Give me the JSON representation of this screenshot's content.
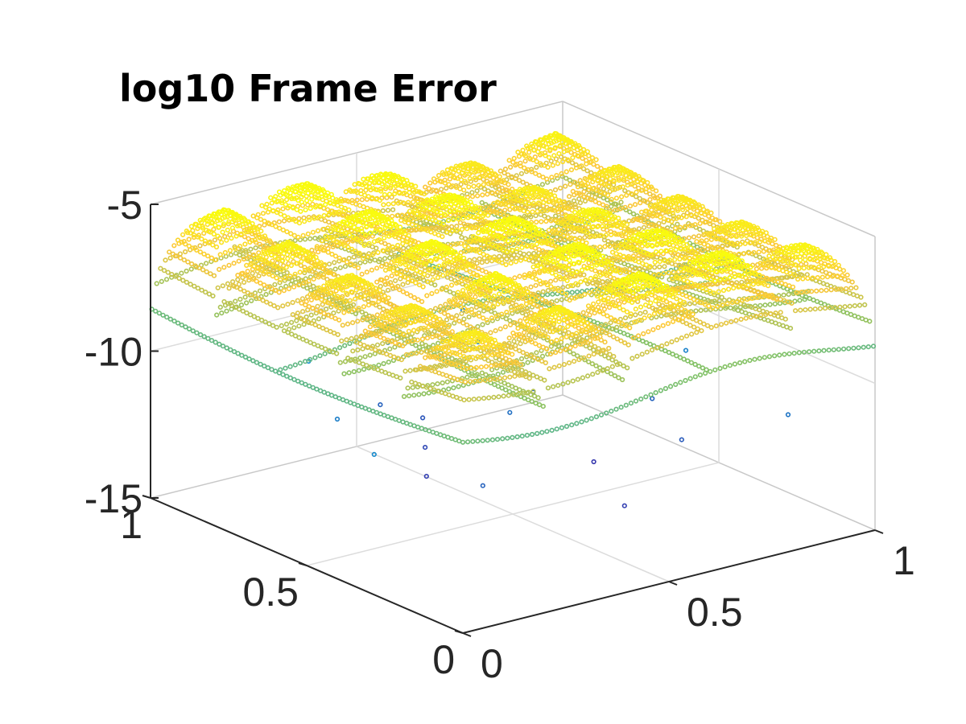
{
  "chart_data": {
    "type": "scatter",
    "view": "3d",
    "title": "log10 Frame Error",
    "xlabel": "",
    "ylabel": "",
    "zlabel": "",
    "xlim": [
      0,
      1
    ],
    "ylim": [
      0,
      1
    ],
    "zlim": [
      -15,
      -5
    ],
    "x_ticks": [
      "0",
      "0.5",
      "1"
    ],
    "y_ticks": [
      "0",
      "0.5",
      "1"
    ],
    "z_ticks": [
      "-5",
      "-10",
      "-15"
    ],
    "grid": true,
    "colormap": "parula",
    "marker": "small open circle",
    "surface": {
      "description_of_values": "log10 error over a 5x5 grid of arches on [0,1]x[0,1]",
      "peak_value": -5.3,
      "arches_x": 5,
      "arches_y": 5,
      "sample_spacing": 0.012
    },
    "outlier_points": [
      {
        "x": 0.23,
        "y": 0.42,
        "z": -12.4
      },
      {
        "x": 0.31,
        "y": 0.53,
        "z": -12.2
      },
      {
        "x": 0.38,
        "y": 0.63,
        "z": -11.9
      },
      {
        "x": 0.43,
        "y": 0.05,
        "z": -12.4
      },
      {
        "x": 0.56,
        "y": 0.32,
        "z": -12.6
      },
      {
        "x": 0.61,
        "y": 0.58,
        "z": -11.6
      },
      {
        "x": 0.77,
        "y": 0.41,
        "z": -11.6
      },
      {
        "x": 0.2,
        "y": 0.2,
        "z": -11.6
      },
      {
        "x": 0.81,
        "y": 0.82,
        "z": -11.1
      },
      {
        "x": 0.33,
        "y": 0.7,
        "z": -11.6
      },
      {
        "x": 0.69,
        "y": 0.21,
        "z": -11.8
      },
      {
        "x": 0.5,
        "y": 0.9,
        "z": -11.0
      },
      {
        "x": 0.88,
        "y": 0.12,
        "z": -11.2
      },
      {
        "x": 0.15,
        "y": 0.6,
        "z": -11.0
      },
      {
        "x": 0.47,
        "y": 0.47,
        "z": -11.3
      },
      {
        "x": 0.62,
        "y": 0.77,
        "z": -10.8
      },
      {
        "x": 0.27,
        "y": 0.85,
        "z": -10.6
      },
      {
        "x": 0.92,
        "y": 0.5,
        "z": -10.9
      },
      {
        "x": 0.05,
        "y": 0.35,
        "z": -10.7
      },
      {
        "x": 0.72,
        "y": 0.95,
        "z": -10.9
      }
    ]
  },
  "colors": {
    "high": "#f9fb0e",
    "upper": "#fcc737",
    "mid": "#7fc166",
    "low": "#119cd3",
    "lowest": "#3e26a8",
    "axis": "#262626",
    "grid": "#dcdcdc"
  }
}
